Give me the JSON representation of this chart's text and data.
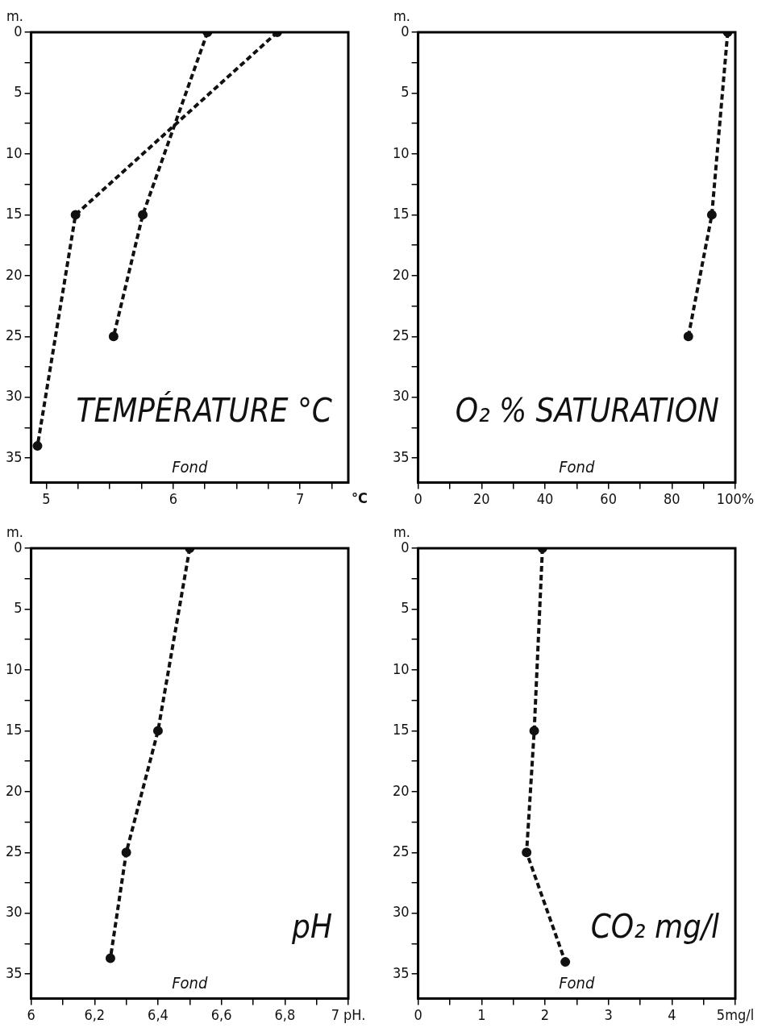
{
  "chart_data": [
    {
      "type": "line",
      "title": "TEMPÉRATURE °C",
      "xlabel": "°C",
      "ylabel": "m.",
      "annotations": [
        "Fond"
      ],
      "xlim": [
        4.88,
        7.38
      ],
      "xticks": [
        5,
        {
          "value": 5.25,
          "label": null
        },
        {
          "value": 5.5,
          "label": null
        },
        {
          "value": 5.75,
          "label": null
        },
        6,
        {
          "value": 6.25,
          "label": null
        },
        {
          "value": 6.5,
          "label": null
        },
        {
          "value": 6.75,
          "label": null
        },
        7,
        {
          "value": 7.25,
          "label": null
        }
      ],
      "ylim": [
        37,
        0
      ],
      "yticks": [
        0,
        {
          "value": 2.5,
          "label": null
        },
        5,
        {
          "value": 7.5,
          "label": null
        },
        10,
        {
          "value": 12.5,
          "label": null
        },
        15,
        {
          "value": 17.5,
          "label": null
        },
        20,
        {
          "value": 22.5,
          "label": null
        },
        25,
        {
          "value": 27.5,
          "label": null
        },
        30,
        {
          "value": 32.5,
          "label": null
        },
        35
      ],
      "grid": false,
      "marker": "circle",
      "line_style": "dashed",
      "series": [
        {
          "color": "#111111",
          "x": [
            6.82,
            5.23,
            4.93
          ],
          "values": [
            0,
            15,
            34
          ]
        },
        {
          "color": "#111111",
          "x": [
            6.27,
            5.76,
            5.53
          ],
          "values": [
            0,
            15,
            25
          ]
        }
      ]
    },
    {
      "type": "line",
      "title": "O₂ % SATURATION",
      "ylabel": "m.",
      "annotations": [
        "Fond"
      ],
      "xlim": [
        0,
        100
      ],
      "xticks": [
        0,
        {
          "value": 10,
          "label": null
        },
        20,
        {
          "value": 30,
          "label": null
        },
        40,
        {
          "value": 50,
          "label": null
        },
        60,
        {
          "value": 70,
          "label": null
        },
        80,
        {
          "value": 90,
          "label": null
        },
        {
          "value": 100,
          "label": "100%"
        }
      ],
      "ylim": [
        37,
        0
      ],
      "yticks": [
        0,
        {
          "value": 2.5,
          "label": null
        },
        5,
        {
          "value": 7.5,
          "label": null
        },
        10,
        {
          "value": 12.5,
          "label": null
        },
        15,
        {
          "value": 17.5,
          "label": null
        },
        20,
        {
          "value": 22.5,
          "label": null
        },
        25,
        {
          "value": 27.5,
          "label": null
        },
        30,
        {
          "value": 32.5,
          "label": null
        },
        35
      ],
      "grid": false,
      "marker": "circle",
      "line_style": "dashed",
      "series": [
        {
          "color": "#111111",
          "x": [
            97.6,
            92.6,
            85.2
          ],
          "values": [
            0,
            15,
            25
          ]
        }
      ]
    },
    {
      "type": "line",
      "title": "pH",
      "ylabel": "m.",
      "annotations": [
        "Fond"
      ],
      "xlim": [
        6,
        7
      ],
      "xticks": [
        6,
        {
          "value": 6.1,
          "label": null
        },
        {
          "value": 6.2,
          "label": "6,2"
        },
        {
          "value": 6.3,
          "label": null
        },
        {
          "value": 6.4,
          "label": "6,4"
        },
        {
          "value": 6.5,
          "label": null
        },
        {
          "value": 6.6,
          "label": "6,6"
        },
        {
          "value": 6.7,
          "label": null
        },
        {
          "value": 6.8,
          "label": "6,8"
        },
        {
          "value": 6.9,
          "label": null
        },
        {
          "value": 7,
          "label": "7 pH."
        }
      ],
      "ylim": [
        37,
        0
      ],
      "yticks": [
        0,
        {
          "value": 2.5,
          "label": null
        },
        5,
        {
          "value": 7.5,
          "label": null
        },
        10,
        {
          "value": 12.5,
          "label": null
        },
        15,
        {
          "value": 17.5,
          "label": null
        },
        20,
        {
          "value": 22.5,
          "label": null
        },
        25,
        {
          "value": 27.5,
          "label": null
        },
        30,
        {
          "value": 32.5,
          "label": null
        },
        35
      ],
      "grid": false,
      "marker": "circle",
      "line_style": "dashed",
      "series": [
        {
          "color": "#111111",
          "x": [
            6.5,
            6.4,
            6.3,
            6.25
          ],
          "values": [
            0,
            15,
            25,
            33.7
          ]
        }
      ]
    },
    {
      "type": "line",
      "title": "CO₂ mg/l",
      "ylabel": "m.",
      "annotations": [
        "Fond"
      ],
      "xlim": [
        0,
        5
      ],
      "xticks": [
        0,
        {
          "value": 0.5,
          "label": null
        },
        1,
        {
          "value": 1.5,
          "label": null
        },
        2,
        {
          "value": 2.5,
          "label": null
        },
        3,
        {
          "value": 3.5,
          "label": null
        },
        4,
        {
          "value": 4.5,
          "label": null
        },
        {
          "value": 5,
          "label": "5mg/l"
        }
      ],
      "ylim": [
        37,
        0
      ],
      "yticks": [
        0,
        {
          "value": 2.5,
          "label": null
        },
        5,
        {
          "value": 7.5,
          "label": null
        },
        10,
        {
          "value": 12.5,
          "label": null
        },
        15,
        {
          "value": 17.5,
          "label": null
        },
        20,
        {
          "value": 22.5,
          "label": null
        },
        25,
        {
          "value": 27.5,
          "label": null
        },
        30,
        {
          "value": 32.5,
          "label": null
        },
        35
      ],
      "grid": false,
      "marker": "circle",
      "line_style": "dashed",
      "series": [
        {
          "color": "#111111",
          "x": [
            1.96,
            1.83,
            1.71,
            2.32
          ],
          "values": [
            0,
            15,
            25,
            34
          ]
        }
      ]
    }
  ]
}
